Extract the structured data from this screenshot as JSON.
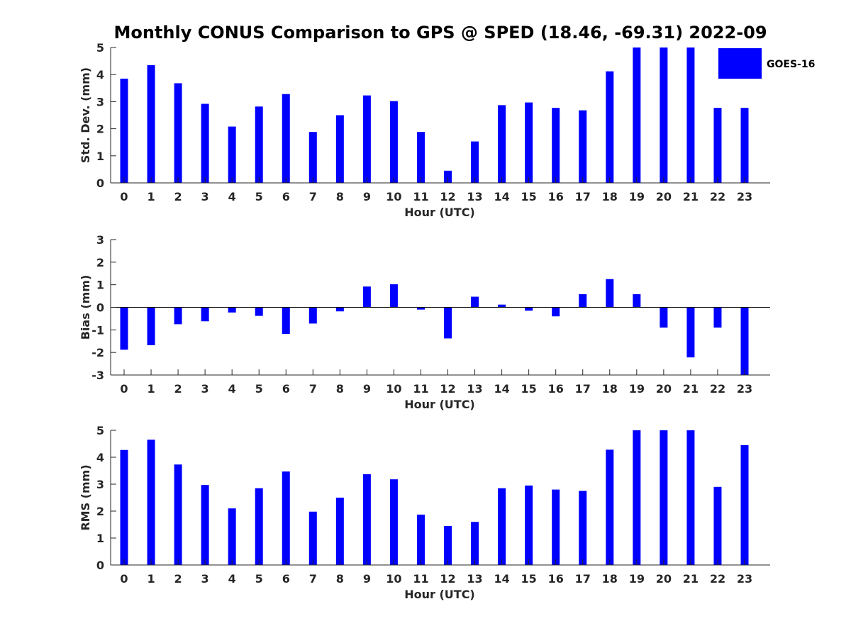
{
  "title": "Monthly CONUS Comparison to GPS @ SPED (18.46, -69.31) 2022-09",
  "legend": {
    "label": "GOES-16",
    "color": "#0000ff"
  },
  "chart_data": [
    {
      "type": "bar",
      "name": "std-dev",
      "categories": [
        "0",
        "1",
        "2",
        "3",
        "4",
        "5",
        "6",
        "7",
        "8",
        "9",
        "10",
        "11",
        "12",
        "13",
        "14",
        "15",
        "16",
        "17",
        "18",
        "19",
        "20",
        "21",
        "22",
        "23"
      ],
      "series": [
        {
          "name": "GOES-16",
          "values": [
            3.85,
            4.35,
            3.68,
            2.92,
            2.08,
            2.82,
            3.28,
            1.88,
            2.5,
            3.23,
            3.02,
            1.88,
            0.45,
            1.53,
            2.87,
            2.97,
            2.77,
            2.68,
            4.12,
            5.0,
            5.0,
            5.0,
            2.77,
            2.77
          ]
        }
      ],
      "xlabel": "Hour (UTC)",
      "ylabel": "Std. Dev. (mm)",
      "ylim": [
        0,
        5
      ],
      "yticks": [
        "0",
        "1",
        "2",
        "3",
        "4",
        "5"
      ],
      "grid": false
    },
    {
      "type": "bar",
      "name": "bias",
      "categories": [
        "0",
        "1",
        "2",
        "3",
        "4",
        "5",
        "6",
        "7",
        "8",
        "9",
        "10",
        "11",
        "12",
        "13",
        "14",
        "15",
        "16",
        "17",
        "18",
        "19",
        "20",
        "21",
        "22",
        "23"
      ],
      "series": [
        {
          "name": "GOES-16",
          "values": [
            -1.88,
            -1.68,
            -0.75,
            -0.62,
            -0.23,
            -0.38,
            -1.18,
            -0.72,
            -0.18,
            0.92,
            1.02,
            -0.1,
            -1.38,
            0.47,
            0.12,
            -0.15,
            -0.4,
            0.58,
            1.25,
            0.58,
            -0.9,
            -2.22,
            -0.9,
            -3.0
          ]
        }
      ],
      "xlabel": "Hour (UTC)",
      "ylabel": "Bias (mm)",
      "ylim": [
        -3,
        3
      ],
      "yticks": [
        "-3",
        "-2",
        "-1",
        "0",
        "1",
        "2",
        "3"
      ],
      "grid": false
    },
    {
      "type": "bar",
      "name": "rms",
      "categories": [
        "0",
        "1",
        "2",
        "3",
        "4",
        "5",
        "6",
        "7",
        "8",
        "9",
        "10",
        "11",
        "12",
        "13",
        "14",
        "15",
        "16",
        "17",
        "18",
        "19",
        "20",
        "21",
        "22",
        "23"
      ],
      "series": [
        {
          "name": "GOES-16",
          "values": [
            4.27,
            4.65,
            3.73,
            2.97,
            2.1,
            2.85,
            3.47,
            1.98,
            2.5,
            3.37,
            3.18,
            1.87,
            1.45,
            1.6,
            2.85,
            2.95,
            2.8,
            2.75,
            4.28,
            5.0,
            5.0,
            5.0,
            2.9,
            4.45
          ]
        }
      ],
      "xlabel": "Hour (UTC)",
      "ylabel": "RMS (mm)",
      "ylim": [
        0,
        5
      ],
      "yticks": [
        "0",
        "1",
        "2",
        "3",
        "4",
        "5"
      ],
      "grid": false
    }
  ]
}
